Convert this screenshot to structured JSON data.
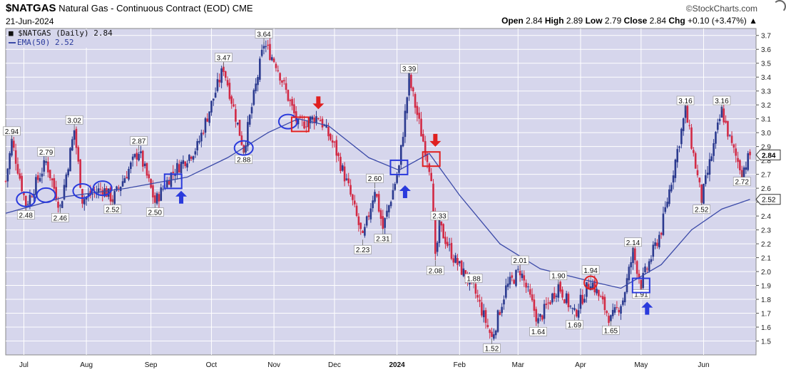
{
  "header": {
    "symbol": "$NATGAS",
    "name": "Natural Gas - Continuous Contract (EOD)",
    "exchange": "CME",
    "date": "21-Jun-2024",
    "watermark": "©StockCharts.com",
    "open_label": "Open",
    "open": "2.84",
    "high_label": "High",
    "high": "2.89",
    "low_label": "Low",
    "low": "2.79",
    "close_label": "Close",
    "close": "2.84",
    "chg_label": "Chg",
    "chg": "+0.10 (+3.47%)",
    "up_arrow": "▲"
  },
  "legend": {
    "price": "$NATGAS (Daily) 2.84",
    "ema": "EMA(50) 2.52"
  },
  "chart_data": {
    "type": "candlestick",
    "ylim": [
      1.4,
      3.75
    ],
    "yticks": [
      1.5,
      1.6,
      1.7,
      1.8,
      1.9,
      2.0,
      2.1,
      2.2,
      2.3,
      2.4,
      2.5,
      2.6,
      2.7,
      2.8,
      2.9,
      3.0,
      3.1,
      3.2,
      3.3,
      3.4,
      3.5,
      3.6,
      3.7
    ],
    "ytick_labels": [
      "1.5",
      "1.6",
      "1.7",
      "1.8",
      "1.9",
      "2.0",
      "2.1",
      "2.2",
      "2.3",
      "2.4",
      "2.5",
      "2.6",
      "2.7",
      "2.8",
      "2.9",
      "3.0",
      "3.1",
      "3.2",
      "3.3",
      "3.4",
      "3.5",
      "3.6",
      "3.7"
    ],
    "xticks": [
      {
        "label": "Jul",
        "day": 9
      },
      {
        "label": "Aug",
        "day": 40
      },
      {
        "label": "Sep",
        "day": 72
      },
      {
        "label": "Oct",
        "day": 102
      },
      {
        "label": "Nov",
        "day": 133
      },
      {
        "label": "Dec",
        "day": 163
      },
      {
        "label": "2024",
        "day": 194,
        "bold": true
      },
      {
        "label": "Feb",
        "day": 225
      },
      {
        "label": "Mar",
        "day": 254
      },
      {
        "label": "Apr",
        "day": 285
      },
      {
        "label": "May",
        "day": 315
      },
      {
        "label": "Jun",
        "day": 346
      }
    ],
    "price_series": {
      "name": "$NATGAS",
      "points": [
        [
          0,
          2.65
        ],
        [
          3,
          2.94
        ],
        [
          10,
          2.48
        ],
        [
          20,
          2.79
        ],
        [
          27,
          2.46
        ],
        [
          34,
          3.02
        ],
        [
          38,
          2.52
        ],
        [
          48,
          2.6
        ],
        [
          53,
          2.52
        ],
        [
          66,
          2.87
        ],
        [
          74,
          2.5
        ],
        [
          82,
          2.7
        ],
        [
          95,
          2.9
        ],
        [
          108,
          3.47
        ],
        [
          118,
          2.88
        ],
        [
          128,
          3.64
        ],
        [
          134,
          3.5
        ],
        [
          145,
          3.05
        ],
        [
          155,
          3.12
        ],
        [
          163,
          2.9
        ],
        [
          170,
          2.6
        ],
        [
          177,
          2.23
        ],
        [
          183,
          2.6
        ],
        [
          187,
          2.31
        ],
        [
          195,
          2.75
        ],
        [
          200,
          3.39
        ],
        [
          206,
          3.0
        ],
        [
          211,
          2.7
        ],
        [
          213,
          2.08
        ],
        [
          215,
          2.33
        ],
        [
          222,
          2.1
        ],
        [
          232,
          1.88
        ],
        [
          241,
          1.52
        ],
        [
          248,
          1.88
        ],
        [
          255,
          2.01
        ],
        [
          264,
          1.64
        ],
        [
          274,
          1.9
        ],
        [
          282,
          1.69
        ],
        [
          290,
          1.94
        ],
        [
          300,
          1.65
        ],
        [
          306,
          1.8
        ],
        [
          311,
          2.14
        ],
        [
          315,
          1.91
        ],
        [
          325,
          2.3
        ],
        [
          337,
          3.16
        ],
        [
          345,
          2.52
        ],
        [
          355,
          3.16
        ],
        [
          360,
          2.9
        ],
        [
          365,
          2.72
        ],
        [
          369,
          2.84
        ]
      ]
    },
    "ema_series": {
      "name": "EMA(50)",
      "points": [
        [
          0,
          2.42
        ],
        [
          30,
          2.54
        ],
        [
          60,
          2.6
        ],
        [
          90,
          2.68
        ],
        [
          110,
          2.82
        ],
        [
          130,
          3.0
        ],
        [
          145,
          3.1
        ],
        [
          160,
          3.05
        ],
        [
          180,
          2.82
        ],
        [
          195,
          2.73
        ],
        [
          210,
          2.85
        ],
        [
          225,
          2.55
        ],
        [
          245,
          2.2
        ],
        [
          265,
          2.02
        ],
        [
          290,
          1.93
        ],
        [
          305,
          1.88
        ],
        [
          325,
          2.05
        ],
        [
          340,
          2.3
        ],
        [
          355,
          2.45
        ],
        [
          369,
          2.52
        ]
      ]
    },
    "annotations": [
      {
        "day": 3,
        "value": 2.94,
        "label": "2.94",
        "pos": "above"
      },
      {
        "day": 10,
        "value": 2.48,
        "label": "2.48",
        "pos": "below"
      },
      {
        "day": 20,
        "value": 2.79,
        "label": "2.79",
        "pos": "above"
      },
      {
        "day": 27,
        "value": 2.46,
        "label": "2.46",
        "pos": "below"
      },
      {
        "day": 34,
        "value": 3.02,
        "label": "3.02",
        "pos": "above"
      },
      {
        "day": 53,
        "value": 2.52,
        "label": "2.52",
        "pos": "below"
      },
      {
        "day": 66,
        "value": 2.87,
        "label": "2.87",
        "pos": "above"
      },
      {
        "day": 74,
        "value": 2.5,
        "label": "2.50",
        "pos": "below"
      },
      {
        "day": 108,
        "value": 3.47,
        "label": "3.47",
        "pos": "above"
      },
      {
        "day": 118,
        "value": 2.88,
        "label": "2.88",
        "pos": "below"
      },
      {
        "day": 128,
        "value": 3.64,
        "label": "3.64",
        "pos": "above"
      },
      {
        "day": 177,
        "value": 2.23,
        "label": "2.23",
        "pos": "below"
      },
      {
        "day": 183,
        "value": 2.6,
        "label": "2.60",
        "pos": "above"
      },
      {
        "day": 187,
        "value": 2.31,
        "label": "2.31",
        "pos": "below"
      },
      {
        "day": 200,
        "value": 3.39,
        "label": "3.39",
        "pos": "above"
      },
      {
        "day": 213,
        "value": 2.08,
        "label": "2.08",
        "pos": "below"
      },
      {
        "day": 215,
        "value": 2.33,
        "label": "2.33",
        "pos": "above"
      },
      {
        "day": 232,
        "value": 1.88,
        "label": "1.88",
        "pos": "above"
      },
      {
        "day": 241,
        "value": 1.52,
        "label": "1.52",
        "pos": "below"
      },
      {
        "day": 255,
        "value": 2.01,
        "label": "2.01",
        "pos": "above"
      },
      {
        "day": 264,
        "value": 1.64,
        "label": "1.64",
        "pos": "below"
      },
      {
        "day": 274,
        "value": 1.9,
        "label": "1.90",
        "pos": "above"
      },
      {
        "day": 282,
        "value": 1.69,
        "label": "1.69",
        "pos": "below"
      },
      {
        "day": 290,
        "value": 1.94,
        "label": "1.94",
        "pos": "above"
      },
      {
        "day": 300,
        "value": 1.65,
        "label": "1.65",
        "pos": "below"
      },
      {
        "day": 311,
        "value": 2.14,
        "label": "2.14",
        "pos": "above"
      },
      {
        "day": 315,
        "value": 1.91,
        "label": "1.91",
        "pos": "below"
      },
      {
        "day": 337,
        "value": 3.16,
        "label": "3.16",
        "pos": "above"
      },
      {
        "day": 345,
        "value": 2.52,
        "label": "2.52",
        "pos": "below"
      },
      {
        "day": 355,
        "value": 3.16,
        "label": "3.16",
        "pos": "above"
      },
      {
        "day": 365,
        "value": 2.72,
        "label": "2.72",
        "pos": "below"
      }
    ],
    "last_price_tag": "2.84",
    "ema_price_tag": "2.52",
    "ema_tag_value": 2.52,
    "last_tag_value": 2.84,
    "markers": {
      "blue_ellipses": [
        [
          10,
          2.52
        ],
        [
          20,
          2.55
        ],
        [
          38,
          2.58
        ],
        [
          48,
          2.6
        ],
        [
          118,
          2.89
        ],
        [
          140,
          3.08
        ]
      ],
      "blue_squares": [
        [
          83,
          2.65
        ],
        [
          195,
          2.75
        ],
        [
          315,
          1.9
        ]
      ],
      "red_squares": [
        [
          146,
          3.06
        ],
        [
          211,
          2.81
        ]
      ],
      "red_circles": [
        [
          290,
          1.92
        ]
      ],
      "blue_up_arrows": [
        [
          87,
          2.53
        ],
        [
          198,
          2.57
        ],
        [
          318,
          1.73
        ]
      ],
      "red_down_arrows": [
        [
          155,
          3.22
        ],
        [
          213,
          2.95
        ]
      ]
    },
    "colors": {
      "bg": "#d6d6ec",
      "grid": "#ffffff",
      "up": "#2b3a8f",
      "down": "#d22a45",
      "ema": "#3b4aa8",
      "marker_blue": "#2a3adc",
      "marker_red": "#e02020"
    },
    "grid": true
  }
}
